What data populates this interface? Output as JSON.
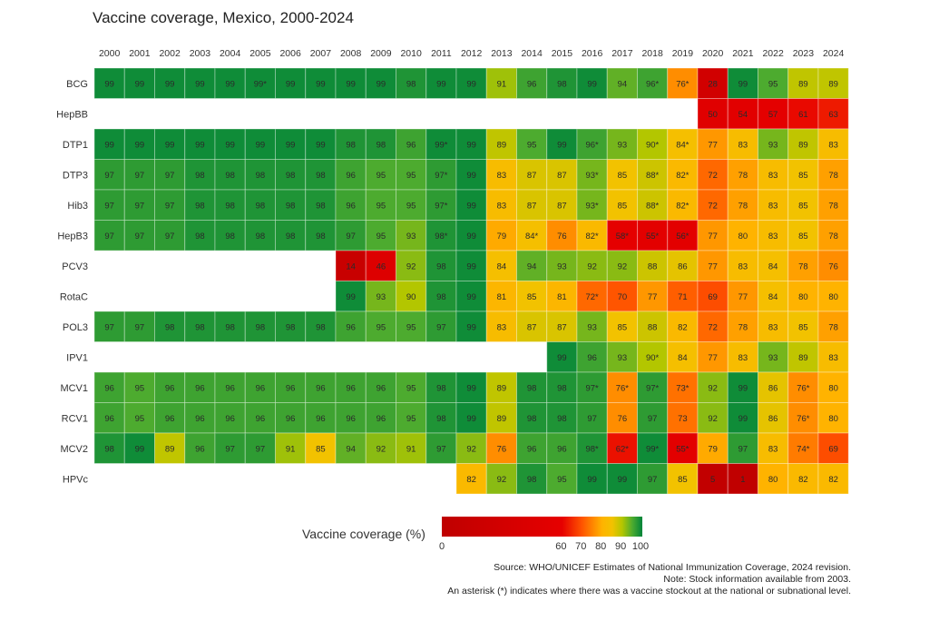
{
  "chart_data": {
    "type": "heatmap",
    "title": "Vaccine coverage, Mexico, 2000-2024",
    "xlabel": "",
    "ylabel": "",
    "x": [
      "2000",
      "2001",
      "2002",
      "2003",
      "2004",
      "2005",
      "2006",
      "2007",
      "2008",
      "2009",
      "2010",
      "2011",
      "2012",
      "2013",
      "2014",
      "2015",
      "2016",
      "2017",
      "2018",
      "2019",
      "2020",
      "2021",
      "2022",
      "2023",
      "2024"
    ],
    "rows": [
      {
        "name": "BCG",
        "values": [
          "99",
          "99",
          "99",
          "99",
          "99",
          "99*",
          "99",
          "99",
          "99",
          "99",
          "98",
          "99",
          "99",
          "91",
          "96",
          "98",
          "99",
          "94",
          "96*",
          "76*",
          "28",
          "99",
          "95",
          "89",
          "89"
        ]
      },
      {
        "name": "HepBB",
        "values": [
          null,
          null,
          null,
          null,
          null,
          null,
          null,
          null,
          null,
          null,
          null,
          null,
          null,
          null,
          null,
          null,
          null,
          null,
          null,
          null,
          "50",
          "54",
          "57",
          "61",
          "63"
        ]
      },
      {
        "name": "DTP1",
        "values": [
          "99",
          "99",
          "99",
          "99",
          "99",
          "99",
          "99",
          "99",
          "98",
          "98",
          "96",
          "99*",
          "99",
          "89",
          "95",
          "99",
          "96*",
          "93",
          "90*",
          "84*",
          "77",
          "83",
          "93",
          "89",
          "83"
        ]
      },
      {
        "name": "DTP3",
        "values": [
          "97",
          "97",
          "97",
          "98",
          "98",
          "98",
          "98",
          "98",
          "96",
          "95",
          "95",
          "97*",
          "99",
          "83",
          "87",
          "87",
          "93*",
          "85",
          "88*",
          "82*",
          "72",
          "78",
          "83",
          "85",
          "78"
        ]
      },
      {
        "name": "Hib3",
        "values": [
          "97",
          "97",
          "97",
          "98",
          "98",
          "98",
          "98",
          "98",
          "96",
          "95",
          "95",
          "97*",
          "99",
          "83",
          "87",
          "87",
          "93*",
          "85",
          "88*",
          "82*",
          "72",
          "78",
          "83",
          "85",
          "78"
        ]
      },
      {
        "name": "HepB3",
        "values": [
          "97",
          "97",
          "97",
          "98",
          "98",
          "98",
          "98",
          "98",
          "97",
          "95",
          "93",
          "98*",
          "99",
          "79",
          "84*",
          "76",
          "82*",
          "58*",
          "55*",
          "56*",
          "77",
          "80",
          "83",
          "85",
          "78"
        ]
      },
      {
        "name": "PCV3",
        "values": [
          null,
          null,
          null,
          null,
          null,
          null,
          null,
          null,
          "14",
          "46",
          "92",
          "98",
          "99",
          "84",
          "94",
          "93",
          "92",
          "92",
          "88",
          "86",
          "77",
          "83",
          "84",
          "78",
          "76"
        ]
      },
      {
        "name": "RotaC",
        "values": [
          null,
          null,
          null,
          null,
          null,
          null,
          null,
          null,
          "99",
          "93",
          "90",
          "98",
          "99",
          "81",
          "85",
          "81",
          "72*",
          "70",
          "77",
          "71",
          "69",
          "77",
          "84",
          "80",
          "80"
        ]
      },
      {
        "name": "POL3",
        "values": [
          "97",
          "97",
          "98",
          "98",
          "98",
          "98",
          "98",
          "98",
          "96",
          "95",
          "95",
          "97",
          "99",
          "83",
          "87",
          "87",
          "93",
          "85",
          "88",
          "82",
          "72",
          "78",
          "83",
          "85",
          "78"
        ]
      },
      {
        "name": "IPV1",
        "values": [
          null,
          null,
          null,
          null,
          null,
          null,
          null,
          null,
          null,
          null,
          null,
          null,
          null,
          null,
          null,
          "99",
          "96",
          "93",
          "90*",
          "84",
          "77",
          "83",
          "93",
          "89",
          "83"
        ]
      },
      {
        "name": "MCV1",
        "values": [
          "96",
          "95",
          "96",
          "96",
          "96",
          "96",
          "96",
          "96",
          "96",
          "96",
          "95",
          "98",
          "99",
          "89",
          "98",
          "98",
          "97*",
          "76*",
          "97*",
          "73*",
          "92",
          "99",
          "86",
          "76*",
          "80"
        ]
      },
      {
        "name": "RCV1",
        "values": [
          "96",
          "95",
          "96",
          "96",
          "96",
          "96",
          "96",
          "96",
          "96",
          "96",
          "95",
          "98",
          "99",
          "89",
          "98",
          "98",
          "97",
          "76",
          "97",
          "73",
          "92",
          "99",
          "86",
          "76*",
          "80"
        ]
      },
      {
        "name": "MCV2",
        "values": [
          "98",
          "99",
          "89",
          "96",
          "97",
          "97",
          "91",
          "85",
          "94",
          "92",
          "91",
          "97",
          "92",
          "76",
          "96",
          "96",
          "98*",
          "62*",
          "99*",
          "55*",
          "79",
          "97",
          "83",
          "74*",
          "69"
        ]
      },
      {
        "name": "HPVc",
        "values": [
          null,
          null,
          null,
          null,
          null,
          null,
          null,
          null,
          null,
          null,
          null,
          null,
          "82",
          "92",
          "98",
          "95",
          "99",
          "99",
          "97",
          "85",
          "5",
          "1",
          "80",
          "82",
          "82"
        ]
      }
    ],
    "color_scale": {
      "stops": [
        [
          0,
          "#bf0000"
        ],
        [
          60,
          "#e60000"
        ],
        [
          70,
          "#ff5500"
        ],
        [
          80,
          "#ffb300"
        ],
        [
          85,
          "#f2c200"
        ],
        [
          90,
          "#b3c600"
        ],
        [
          95,
          "#4dab2f"
        ],
        [
          100,
          "#00843a"
        ]
      ],
      "range": [
        0,
        100
      ]
    },
    "legend": {
      "title": "Vaccine coverage (%)",
      "ticks": [
        "0",
        "60",
        "70",
        "80",
        "90",
        "100"
      ],
      "placement": "bottom"
    },
    "notes": [
      "Source: WHO/UNICEF Estimates of National Immunization Coverage, 2024 revision.",
      "Note: Stock information available from 2003.",
      "An asterisk (*) indicates where there was a vaccine stockout at the national or subnational level."
    ]
  }
}
